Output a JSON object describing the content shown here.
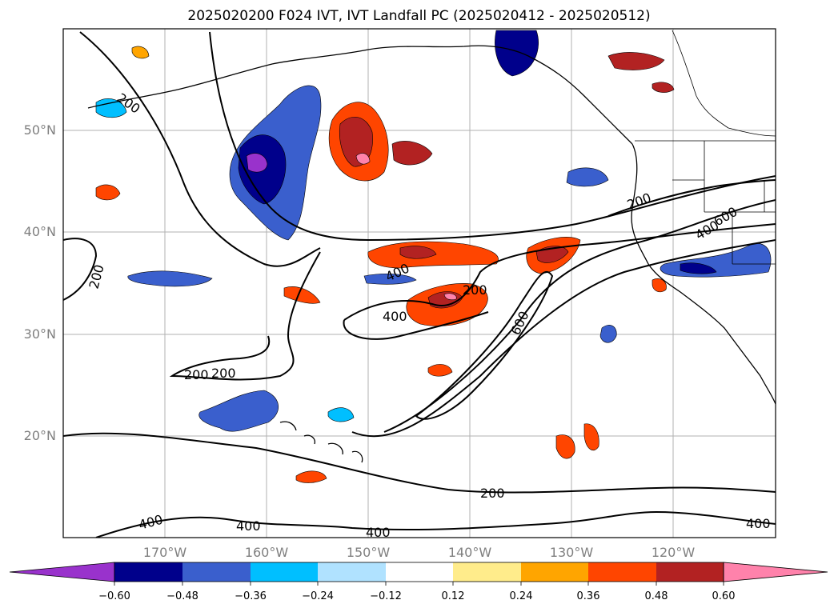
{
  "title": "2025020200 F024 IVT, IVT Landfall PC (2025020412 - 2025020512)",
  "lat_labels": [
    "50°N",
    "40°N",
    "30°N",
    "20°N"
  ],
  "lon_labels": [
    "170°W",
    "160°W",
    "150°W",
    "140°W",
    "130°W",
    "120°W"
  ],
  "contour_labels": [
    {
      "text": "200"
    },
    {
      "text": "200"
    },
    {
      "text": "200"
    },
    {
      "text": "200"
    },
    {
      "text": "200"
    },
    {
      "text": "200"
    },
    {
      "text": "400"
    },
    {
      "text": "400"
    },
    {
      "text": "600"
    },
    {
      "text": "200"
    },
    {
      "text": "400"
    },
    {
      "text": "400"
    },
    {
      "text": "400"
    },
    {
      "text": "400"
    },
    {
      "text": "400"
    },
    {
      "text": "600"
    }
  ],
  "colorbar": {
    "labels": [
      "−0.60",
      "−0.48",
      "−0.36",
      "−0.24",
      "−0.12",
      "0.12",
      "0.24",
      "0.36",
      "0.48",
      "0.60"
    ],
    "colors": [
      "#9932CC",
      "#00008B",
      "#3A5FCD",
      "#00BFFF",
      "#B0E2FF",
      "#FFFFFF",
      "#FFEC8B",
      "#FFA500",
      "#FF4500",
      "#B22222",
      "#FF82AB"
    ]
  }
}
